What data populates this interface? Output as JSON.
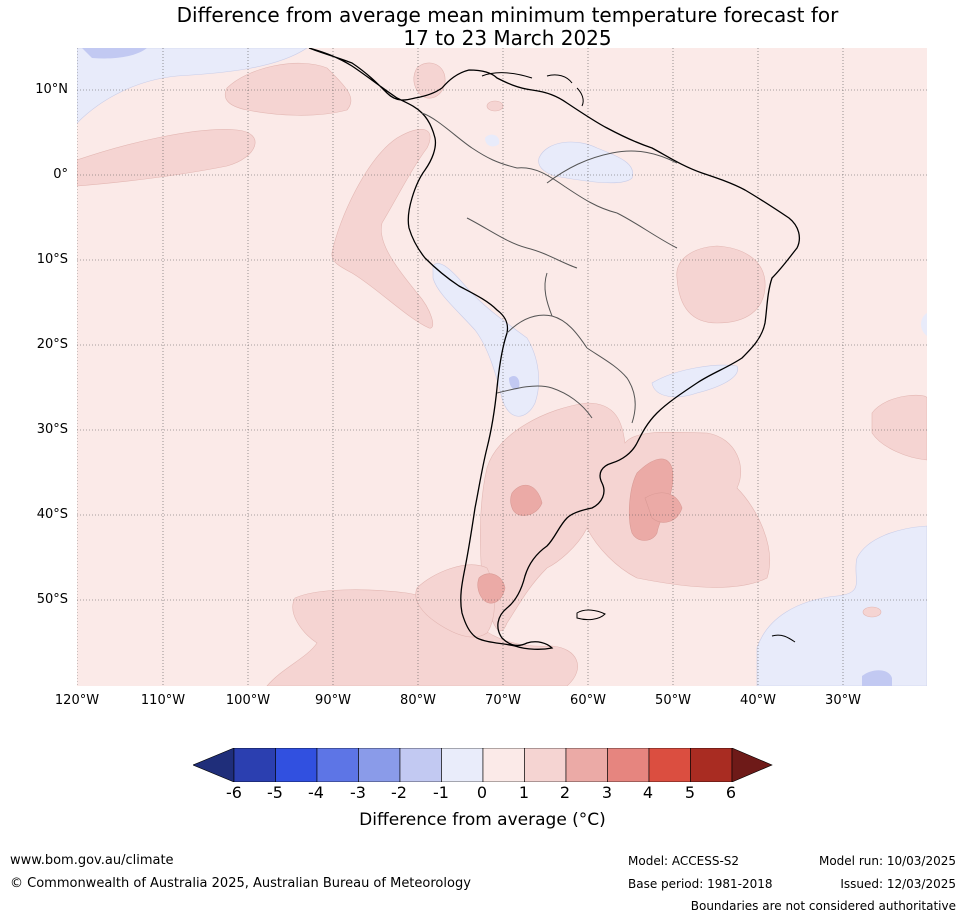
{
  "title_line1": "Difference from average mean minimum temperature forecast for",
  "title_line2": "17 to 23 March 2025",
  "lat_labels": [
    "10°N",
    "0°",
    "10°S",
    "20°S",
    "30°S",
    "40°S",
    "50°S"
  ],
  "lon_labels": [
    "120°W",
    "110°W",
    "100°W",
    "90°W",
    "80°W",
    "70°W",
    "60°W",
    "50°W",
    "40°W",
    "30°W"
  ],
  "colorbar": {
    "ticks": [
      "-6",
      "-5",
      "-4",
      "-3",
      "-2",
      "-1",
      "0",
      "1",
      "2",
      "3",
      "4",
      "5",
      "6"
    ],
    "colors": [
      "#1f2e7a",
      "#2b3fb0",
      "#3150e0",
      "#5d75e6",
      "#8a9be9",
      "#c2c9f2",
      "#e9ecfa",
      "#fbeae8",
      "#f5d4d2",
      "#ebaaa6",
      "#e6857f",
      "#db4e40",
      "#a92c22",
      "#6e1a18"
    ],
    "label": "Difference from average (°C)"
  },
  "footer": {
    "website": "www.bom.gov.au/climate",
    "copyright": "© Commonwealth of Australia 2025, Australian Bureau of Meteorology",
    "model": "Model: ACCESS-S2",
    "base_period": "Base period: 1981-2018",
    "model_run": "Model run: 10/03/2025",
    "issued": "Issued: 12/03/2025",
    "disclaimer": "Boundaries are not considered authoritative"
  }
}
